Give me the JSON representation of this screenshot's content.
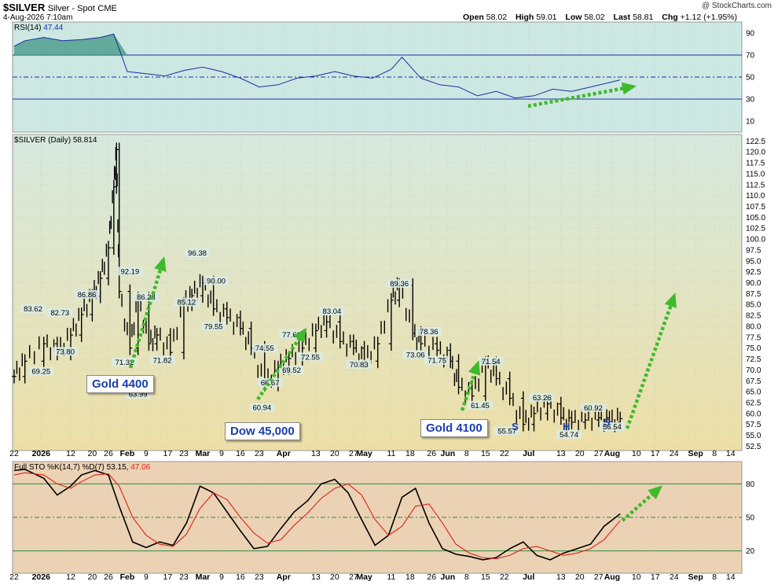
{
  "header": {
    "symbol": "$SILVER",
    "description": "Silver - Spot",
    "exchange": "CME",
    "date": "4-Aug-2026 7:10am",
    "brand": "@ StockCharts.com",
    "open_label": "Open",
    "open": "58.02",
    "high_label": "High",
    "high": "59.01",
    "low_label": "Low",
    "low": "58.02",
    "last_label": "Last",
    "last": "58.81",
    "chg_label": "Chg",
    "chg": "+1.12 (+1.95%)"
  },
  "rsi_pane": {
    "label": "RSI(14)",
    "value": "47.44"
  },
  "price_pane": {
    "label": "$SILVER (Daily)",
    "value": "58.814"
  },
  "sto_pane": {
    "label": "Full STO %K(14,7) %D(7)",
    "k_value": "53.15",
    "d_value": "47.06"
  },
  "callouts": [
    {
      "id": "gold-4400",
      "text": "Gold 4400"
    },
    {
      "id": "dow-45000",
      "text": "Dow 45,000"
    },
    {
      "id": "gold-4100",
      "text": "Gold 4100"
    }
  ],
  "pattern_labels": [
    "S",
    "H",
    "S"
  ],
  "colors": {
    "rsi_bg": "#cde8e2",
    "price_bg_top": "#d6e9df",
    "price_bg_bottom": "#eedfa6",
    "sto_bg": "#ecd2b4",
    "rsi_line": "#1a2ea8",
    "k_line": "#000000",
    "d_line": "#e0201a",
    "arrow": "#3fba2c",
    "callout_text": "#1a3fb0",
    "rsi_fill": "#4a9a8a"
  },
  "chart_data": [
    {
      "type": "line",
      "name": "RSI(14)",
      "ylim": [
        0,
        100
      ],
      "yticks": [
        10,
        30,
        50,
        70,
        90
      ],
      "reference_lines": [
        30,
        50,
        70
      ],
      "x_dates": [
        "2025-12-22",
        "2025-12-26",
        "2026-01-02",
        "2026-01-09",
        "2026-01-16",
        "2026-01-23",
        "2026-01-28",
        "2026-02-02",
        "2026-02-09",
        "2026-02-16",
        "2026-02-23",
        "2026-03-02",
        "2026-03-09",
        "2026-03-16",
        "2026-03-23",
        "2026-03-30",
        "2026-04-06",
        "2026-04-13",
        "2026-04-20",
        "2026-04-27",
        "2026-05-04",
        "2026-05-11",
        "2026-05-15",
        "2026-05-22",
        "2026-05-29",
        "2026-06-05",
        "2026-06-12",
        "2026-06-19",
        "2026-06-26",
        "2026-07-03",
        "2026-07-10",
        "2026-07-17",
        "2026-07-24",
        "2026-07-31",
        "2026-08-04"
      ],
      "values": [
        78,
        83,
        86,
        83,
        84,
        86,
        89,
        55,
        53,
        51,
        56,
        59,
        55,
        49,
        41,
        43,
        49,
        51,
        55,
        51,
        49,
        57,
        68,
        49,
        43,
        41,
        33,
        37,
        31,
        33,
        39,
        37,
        41,
        45,
        47.44
      ]
    },
    {
      "type": "candlestick",
      "name": "$SILVER (Daily)",
      "ylim": [
        51.5,
        124
      ],
      "yticks": [
        52.5,
        55.0,
        57.5,
        60.0,
        62.5,
        65.0,
        67.5,
        70.0,
        72.5,
        75.0,
        77.5,
        80.0,
        82.5,
        85.0,
        87.5,
        90.0,
        92.5,
        95.0,
        97.5,
        100.0,
        102.5,
        105.0,
        107.5,
        110.0,
        112.5,
        115.0,
        117.5,
        120.0,
        122.5
      ],
      "x_ticks": [
        "22",
        "2026",
        "12",
        "20",
        "26",
        "Feb",
        "9",
        "17",
        "23",
        "Mar",
        "9",
        "16",
        "23",
        "Apr",
        "13",
        "20",
        "27",
        "May",
        "11",
        "18",
        "26",
        "Jun",
        "8",
        "15",
        "22",
        "Jul",
        "13",
        "20",
        "27",
        "Aug",
        "10",
        "17",
        "24",
        "Sep",
        "8",
        "14"
      ],
      "x_dates": [
        "2025-12-22",
        "2025-12-26",
        "2026-01-02",
        "2026-01-07",
        "2026-01-12",
        "2026-01-16",
        "2026-01-20",
        "2026-01-23",
        "2026-01-26",
        "2026-01-28",
        "2026-01-29",
        "2026-01-30",
        "2026-02-03",
        "2026-02-06",
        "2026-02-10",
        "2026-02-13",
        "2026-02-18",
        "2026-02-23",
        "2026-02-26",
        "2026-03-02",
        "2026-03-06",
        "2026-03-11",
        "2026-03-16",
        "2026-03-20",
        "2026-03-25",
        "2026-03-30",
        "2026-04-03",
        "2026-04-08",
        "2026-04-13",
        "2026-04-17",
        "2026-04-22",
        "2026-04-27",
        "2026-05-01",
        "2026-05-06",
        "2026-05-11",
        "2026-05-14",
        "2026-05-19",
        "2026-05-22",
        "2026-05-28",
        "2026-06-02",
        "2026-06-05",
        "2026-06-10",
        "2026-06-15",
        "2026-06-19",
        "2026-06-24",
        "2026-06-29",
        "2026-07-03",
        "2026-07-08",
        "2026-07-13",
        "2026-07-17",
        "2026-07-22",
        "2026-07-27",
        "2026-07-31",
        "2026-08-04"
      ],
      "values": [
        68.5,
        72.0,
        76.0,
        73.8,
        78.0,
        82.7,
        86.9,
        91.0,
        98.0,
        112.0,
        120.5,
        88.0,
        75.0,
        86.3,
        76.0,
        78.0,
        74.0,
        85.1,
        87.0,
        90.0,
        84.0,
        82.0,
        79.5,
        75.0,
        66.7,
        70.5,
        72.6,
        75.0,
        79.0,
        81.0,
        76.5,
        75.0,
        72.0,
        76.0,
        86.0,
        89.4,
        78.4,
        76.0,
        74.5,
        72.0,
        66.0,
        64.0,
        71.5,
        68.0,
        63.5,
        57.5,
        60.0,
        62.2,
        59.0,
        58.0,
        58.5,
        59.0,
        58.0,
        58.81
      ],
      "data_labels": [
        {
          "text": "83.62",
          "x": "2025-12-29",
          "y": 83.62
        },
        {
          "text": "69.25",
          "x": "2026-01-01",
          "y": 69.25
        },
        {
          "text": "82.73",
          "x": "2026-01-08",
          "y": 82.73
        },
        {
          "text": "73.80",
          "x": "2026-01-10",
          "y": 73.8
        },
        {
          "text": "86.86",
          "x": "2026-01-18",
          "y": 86.86
        },
        {
          "text": "92.19",
          "x": "2026-02-03",
          "y": 92.19
        },
        {
          "text": "71.32",
          "x": "2026-02-01",
          "y": 71.32
        },
        {
          "text": "86.28",
          "x": "2026-02-09",
          "y": 86.28
        },
        {
          "text": "63.99",
          "x": "2026-02-06",
          "y": 63.99
        },
        {
          "text": "71.82",
          "x": "2026-02-15",
          "y": 71.82
        },
        {
          "text": "96.38",
          "x": "2026-02-28",
          "y": 96.38
        },
        {
          "text": "85.12",
          "x": "2026-02-24",
          "y": 85.12
        },
        {
          "text": "90.00",
          "x": "2026-03-07",
          "y": 90.0
        },
        {
          "text": "79.55",
          "x": "2026-03-06",
          "y": 79.55
        },
        {
          "text": "74.55",
          "x": "2026-03-25",
          "y": 74.55
        },
        {
          "text": "66.67",
          "x": "2026-03-27",
          "y": 66.67
        },
        {
          "text": "60.94",
          "x": "2026-03-24",
          "y": 60.94
        },
        {
          "text": "77.69",
          "x": "2026-04-04",
          "y": 77.69
        },
        {
          "text": "69.52",
          "x": "2026-04-04",
          "y": 69.52
        },
        {
          "text": "72.55",
          "x": "2026-04-11",
          "y": 72.55
        },
        {
          "text": "83.04",
          "x": "2026-04-19",
          "y": 83.04
        },
        {
          "text": "70.83",
          "x": "2026-04-29",
          "y": 70.83
        },
        {
          "text": "89.36",
          "x": "2026-05-14",
          "y": 89.36
        },
        {
          "text": "78.36",
          "x": "2026-05-25",
          "y": 78.36
        },
        {
          "text": "73.06",
          "x": "2026-05-20",
          "y": 73.06
        },
        {
          "text": "71.75",
          "x": "2026-05-28",
          "y": 71.75
        },
        {
          "text": "71.54",
          "x": "2026-06-17",
          "y": 71.54
        },
        {
          "text": "61.45",
          "x": "2026-06-13",
          "y": 61.45
        },
        {
          "text": "55.57",
          "x": "2026-06-23",
          "y": 55.57
        },
        {
          "text": "63.26",
          "x": "2026-07-06",
          "y": 63.26
        },
        {
          "text": "54.74",
          "x": "2026-07-16",
          "y": 54.74
        },
        {
          "text": "60.92",
          "x": "2026-07-25",
          "y": 60.92
        },
        {
          "text": "56.54",
          "x": "2026-08-01",
          "y": 56.54
        }
      ]
    },
    {
      "type": "line",
      "name": "Full STO %K(14,7) %D(7)",
      "ylim": [
        0,
        100
      ],
      "yticks": [
        20,
        50,
        80
      ],
      "reference_lines": [
        20,
        50,
        80
      ],
      "x_dates": [
        "2025-12-22",
        "2025-12-26",
        "2026-01-02",
        "2026-01-07",
        "2026-01-12",
        "2026-01-16",
        "2026-01-21",
        "2026-01-26",
        "2026-01-30",
        "2026-02-04",
        "2026-02-09",
        "2026-02-14",
        "2026-02-19",
        "2026-02-24",
        "2026-03-01",
        "2026-03-06",
        "2026-03-11",
        "2026-03-16",
        "2026-03-21",
        "2026-03-26",
        "2026-03-31",
        "2026-04-05",
        "2026-04-10",
        "2026-04-15",
        "2026-04-20",
        "2026-04-25",
        "2026-04-30",
        "2026-05-05",
        "2026-05-10",
        "2026-05-15",
        "2026-05-20",
        "2026-05-25",
        "2026-05-30",
        "2026-06-04",
        "2026-06-09",
        "2026-06-14",
        "2026-06-19",
        "2026-06-24",
        "2026-06-29",
        "2026-07-04",
        "2026-07-09",
        "2026-07-14",
        "2026-07-19",
        "2026-07-24",
        "2026-07-29",
        "2026-08-04"
      ],
      "series": [
        {
          "name": "%K",
          "values": [
            92,
            93,
            85,
            70,
            78,
            88,
            92,
            88,
            60,
            28,
            23,
            28,
            25,
            45,
            78,
            72,
            55,
            38,
            22,
            24,
            40,
            55,
            65,
            80,
            84,
            72,
            48,
            25,
            34,
            68,
            76,
            45,
            22,
            17,
            15,
            12,
            14,
            22,
            28,
            16,
            12,
            18,
            22,
            26,
            42,
            53.15
          ]
        },
        {
          "name": "%D",
          "values": [
            88,
            90,
            88,
            80,
            76,
            82,
            88,
            89,
            78,
            50,
            34,
            26,
            24,
            35,
            58,
            72,
            66,
            50,
            36,
            27,
            30,
            43,
            54,
            67,
            76,
            80,
            70,
            48,
            34,
            42,
            60,
            62,
            45,
            26,
            18,
            14,
            13,
            16,
            22,
            24,
            20,
            16,
            18,
            22,
            30,
            47.06
          ]
        }
      ]
    }
  ]
}
